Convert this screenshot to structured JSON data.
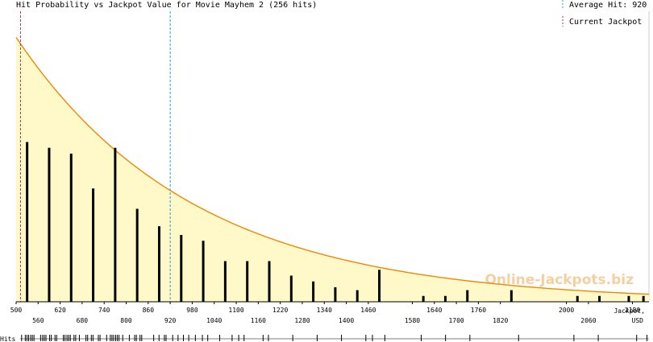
{
  "chart_data": {
    "type": "bar",
    "title": "Hit Probability vs Jackpot Value for Movie Mayhem 2 (256 hits)",
    "legend": {
      "average": "Average Hit: 920",
      "current": "Current Jackpot"
    },
    "average_hit": 920,
    "current_jackpot": 512,
    "xlabel_line1": "Jackpot,",
    "xlabel_line2": "USD",
    "row_label": "Hits",
    "xlim": [
      500,
      2225
    ],
    "ticks_top": [
      500,
      620,
      740,
      860,
      980,
      1100,
      1220,
      1340,
      1460,
      1640,
      1760,
      2000,
      2180
    ],
    "ticks_bottom": [
      560,
      680,
      800,
      920,
      1040,
      1160,
      1280,
      1400,
      1580,
      1700,
      1820,
      2060
    ],
    "bars": [
      {
        "x": 530,
        "v": 0.55
      },
      {
        "x": 590,
        "v": 0.53
      },
      {
        "x": 650,
        "v": 0.51
      },
      {
        "x": 710,
        "v": 0.39
      },
      {
        "x": 770,
        "v": 0.53
      },
      {
        "x": 830,
        "v": 0.32
      },
      {
        "x": 890,
        "v": 0.26
      },
      {
        "x": 950,
        "v": 0.23
      },
      {
        "x": 1010,
        "v": 0.21
      },
      {
        "x": 1070,
        "v": 0.14
      },
      {
        "x": 1130,
        "v": 0.14
      },
      {
        "x": 1190,
        "v": 0.14
      },
      {
        "x": 1250,
        "v": 0.09
      },
      {
        "x": 1310,
        "v": 0.07
      },
      {
        "x": 1370,
        "v": 0.05
      },
      {
        "x": 1430,
        "v": 0.04
      },
      {
        "x": 1490,
        "v": 0.11
      },
      {
        "x": 1610,
        "v": 0.02
      },
      {
        "x": 1670,
        "v": 0.02
      },
      {
        "x": 1730,
        "v": 0.04
      },
      {
        "x": 1850,
        "v": 0.04
      },
      {
        "x": 2030,
        "v": 0.02
      },
      {
        "x": 2090,
        "v": 0.02
      },
      {
        "x": 2170,
        "v": 0.02
      },
      {
        "x": 2210,
        "v": 0.02
      }
    ],
    "curve": {
      "start": 0.91,
      "decay": 0.00206
    },
    "ylim": [
      0,
      1
    ],
    "watermark": "Online-Jackpots.biz",
    "colors": {
      "fill": "#fff8c8",
      "curve": "#ee8800",
      "average": "#3399cc",
      "current": "#aa3355",
      "bars": "#000000"
    }
  }
}
